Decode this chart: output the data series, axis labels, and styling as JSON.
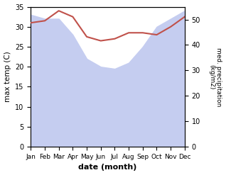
{
  "months": [
    "Jan",
    "Feb",
    "Mar",
    "Apr",
    "May",
    "Jun",
    "Jul",
    "Aug",
    "Sep",
    "Oct",
    "Nov",
    "Dec"
  ],
  "temp": [
    31.0,
    31.5,
    34.0,
    32.5,
    27.5,
    26.5,
    27.0,
    28.5,
    28.5,
    28.0,
    30.0,
    32.5
  ],
  "precip": [
    33.0,
    32.0,
    32.0,
    28.0,
    22.0,
    20.0,
    19.5,
    21.0,
    25.0,
    30.0,
    32.0,
    34.0
  ],
  "temp_color": "#c0514a",
  "precip_fill_color": "#c5cdf0",
  "temp_ylim": [
    0,
    35
  ],
  "precip_ylim": [
    0,
    55
  ],
  "temp_yticks": [
    0,
    5,
    10,
    15,
    20,
    25,
    30,
    35
  ],
  "precip_yticks": [
    0,
    10,
    20,
    30,
    40,
    50
  ],
  "xlabel": "date (month)",
  "ylabel_left": "max temp (C)",
  "ylabel_right": "med. precipitation\n(kg/m2)"
}
